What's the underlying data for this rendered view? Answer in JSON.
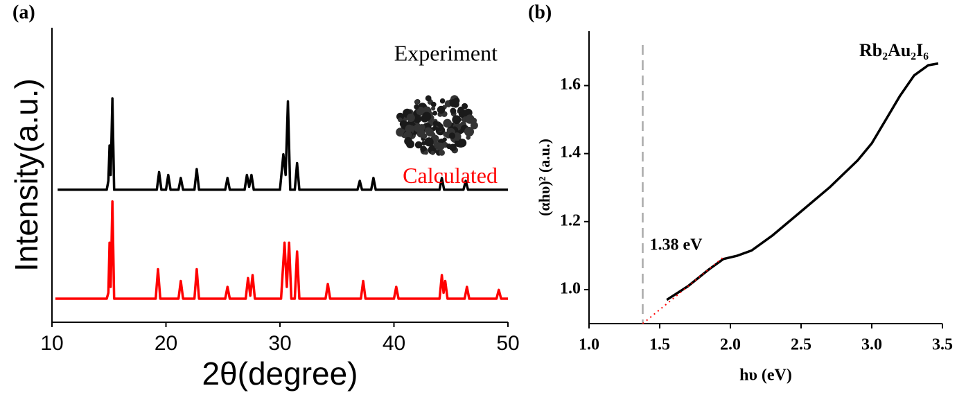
{
  "chart_data": [
    {
      "type": "line",
      "panel_label": "(a)",
      "x_label": "2θ(degree)",
      "y_label": "Intensity(a.u.)",
      "xlim": [
        10,
        50
      ],
      "xticks": [
        10,
        20,
        30,
        40,
        50
      ],
      "ylim": [
        0,
        100
      ],
      "series": [
        {
          "name": "Experiment",
          "color": "#000000",
          "x": [
            10.5,
            14.8,
            14.95,
            15.05,
            15.15,
            15.3,
            15.45,
            19.2,
            19.4,
            19.6,
            20.0,
            20.2,
            20.4,
            21.1,
            21.3,
            21.5,
            22.5,
            22.7,
            22.9,
            25.2,
            25.4,
            25.6,
            26.9,
            27.1,
            27.3,
            27.5,
            27.7,
            30.0,
            30.3,
            30.5,
            30.7,
            30.9,
            31.3,
            31.5,
            31.7,
            36.8,
            37.0,
            37.2,
            38.0,
            38.2,
            38.4,
            44.0,
            44.2,
            44.4,
            46.1,
            46.3,
            46.5,
            50
          ],
          "values": [
            45,
            45,
            48,
            60,
            50,
            76,
            45,
            45,
            51,
            45,
            45,
            50,
            45,
            45,
            49,
            45,
            45,
            52,
            45,
            45,
            49,
            45,
            45,
            50,
            46,
            50,
            45,
            45,
            57,
            50,
            75,
            45,
            45,
            54,
            45,
            45,
            48,
            45,
            45,
            49,
            45,
            45,
            49,
            45,
            45,
            48,
            45,
            45
          ]
        },
        {
          "name": "Calculated",
          "color": "#ff0000",
          "x": [
            10.3,
            14.8,
            14.95,
            15.05,
            15.15,
            15.3,
            15.45,
            19.1,
            19.3,
            19.5,
            21.1,
            21.3,
            21.5,
            22.5,
            22.7,
            22.9,
            25.2,
            25.4,
            25.6,
            27.0,
            27.2,
            27.4,
            27.6,
            27.8,
            30.1,
            30.4,
            30.6,
            30.8,
            31.0,
            31.3,
            31.5,
            31.7,
            34.0,
            34.2,
            34.4,
            37.1,
            37.3,
            37.5,
            40.0,
            40.2,
            40.4,
            44.0,
            44.2,
            44.35,
            44.5,
            44.7,
            46.2,
            46.4,
            46.6,
            49.0,
            49.2,
            49.4,
            50
          ],
          "values": [
            8,
            8,
            10,
            27,
            12,
            41,
            8,
            8,
            18,
            8,
            8,
            14,
            8,
            8,
            18,
            8,
            8,
            12,
            8,
            8,
            15,
            9,
            16,
            8,
            8,
            27,
            12,
            27,
            8,
            8,
            24,
            8,
            8,
            13,
            8,
            8,
            14,
            8,
            8,
            12,
            8,
            8,
            16,
            10,
            14,
            8,
            8,
            12,
            8,
            8,
            11,
            8,
            8
          ]
        }
      ]
    },
    {
      "type": "line",
      "panel_label": "(b)",
      "title": "Rb₂Au₂I₆",
      "x_label": "hυ (eV)",
      "y_label": "(αhυ)² (a.u.)",
      "xlim": [
        1,
        3.5
      ],
      "xticks": [
        {
          "value": 1,
          "label": "1.0"
        },
        1.5,
        {
          "value": 2,
          "label": "2.0"
        },
        2.5,
        {
          "value": 3,
          "label": "3.0"
        },
        3.5
      ],
      "ylim": [
        0.9,
        1.76
      ],
      "yticks": [
        {
          "value": 1,
          "label": "1.0"
        },
        1.2,
        1.4,
        1.6
      ],
      "series": [
        {
          "color": "#000000",
          "x": [
            1.55,
            1.7,
            1.85,
            1.95,
            2.05,
            2.15,
            2.3,
            2.5,
            2.7,
            2.9,
            3.0,
            3.1,
            3.2,
            3.3,
            3.4,
            3.47
          ],
          "values": [
            0.97,
            1.01,
            1.06,
            1.09,
            1.1,
            1.115,
            1.16,
            1.23,
            1.3,
            1.38,
            1.43,
            1.5,
            1.57,
            1.63,
            1.66,
            1.665
          ]
        },
        {
          "color": "#ff0000",
          "line_style": "dotted",
          "x": [
            1.38,
            1.95
          ],
          "values": [
            0.9,
            1.095
          ]
        }
      ],
      "band_gap": {
        "value": 1.38,
        "label": "1.38 eV",
        "color": "#aaaaaa"
      }
    }
  ]
}
